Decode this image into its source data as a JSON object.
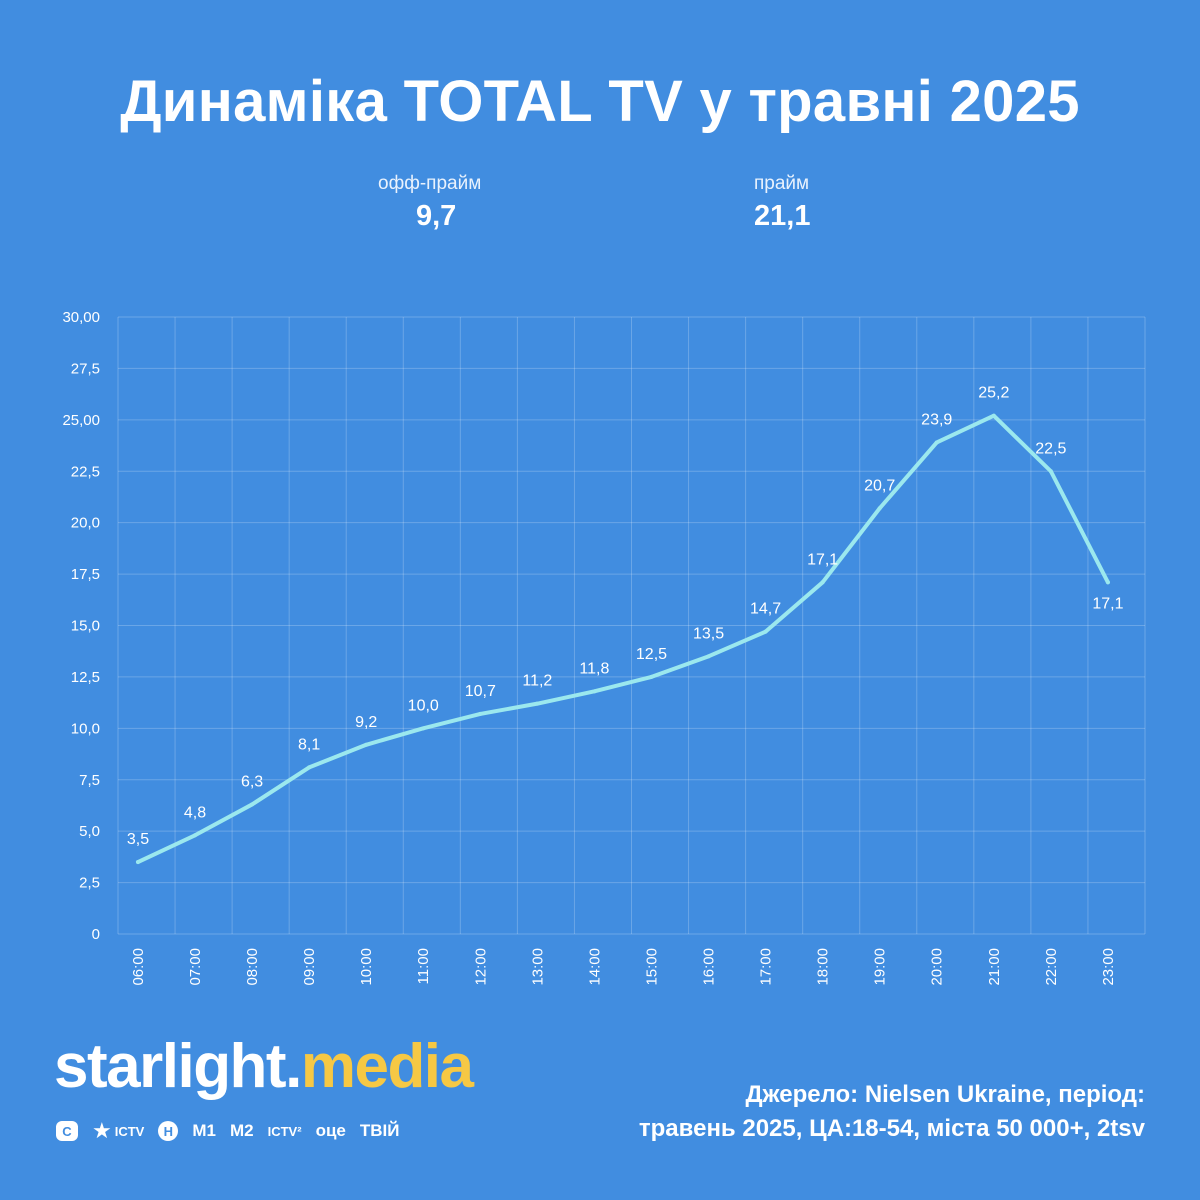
{
  "header": {
    "title": "Динаміка TOTAL TV у травні 2025"
  },
  "summary": [
    {
      "label": "офф-прайм",
      "value": "9,7"
    },
    {
      "label": "прайм",
      "value": "21,1"
    }
  ],
  "chart_data": {
    "type": "line",
    "title": "Динаміка TOTAL TV у травні 2025",
    "xlabel": "",
    "ylabel": "",
    "ylim": [
      0,
      30
    ],
    "yticks": [
      0,
      2.5,
      5,
      7.5,
      10,
      12.5,
      15,
      17.5,
      20,
      22.5,
      25,
      27.5,
      30
    ],
    "ytick_labels": [
      "0",
      "2,5",
      "5,0",
      "7,5",
      "10,0",
      "12,5",
      "15,0",
      "17,5",
      "20,0",
      "22,5",
      "25,00",
      "27,5",
      "30,00"
    ],
    "categories": [
      "06:00",
      "07:00",
      "08:00",
      "09:00",
      "10:00",
      "11:00",
      "12:00",
      "13:00",
      "14:00",
      "15:00",
      "16:00",
      "17:00",
      "18:00",
      "19:00",
      "20:00",
      "21:00",
      "22:00",
      "23:00"
    ],
    "values": [
      3.5,
      4.8,
      6.3,
      8.1,
      9.2,
      10.0,
      10.7,
      11.2,
      11.8,
      12.5,
      13.5,
      14.7,
      17.1,
      20.7,
      23.9,
      25.2,
      22.5,
      17.1
    ],
    "value_labels": [
      "3,5",
      "4,8",
      "6,3",
      "8,1",
      "9,2",
      "10,0",
      "10,7",
      "11,2",
      "11,8",
      "12,5",
      "13,5",
      "14,7",
      "17,1",
      "20,7",
      "23,9",
      "25,2",
      "22,5",
      "17,1"
    ],
    "grid": true,
    "line_color": "#9BE8EE",
    "background_color": "#418DE0"
  },
  "branding": {
    "logo_word": "starlight",
    "logo_dot": ".",
    "logo_accent": "media",
    "accent_color": "#F6C844",
    "channels": [
      {
        "icon": "stb-logo-icon",
        "label": "С"
      },
      {
        "icon": "ictv-logo-icon",
        "label": "ICTV"
      },
      {
        "icon": "novyi-kanal-logo-icon",
        "label": "Н"
      },
      {
        "icon": "m1-logo-icon",
        "label": "М1"
      },
      {
        "icon": "m2-logo-icon",
        "label": "М2"
      },
      {
        "icon": "ictv2-logo-icon",
        "label": "ICTV²"
      },
      {
        "icon": "oce-logo-icon",
        "label": "оце"
      },
      {
        "icon": "tviy-logo-icon",
        "label": "ТВІЙ"
      }
    ]
  },
  "source": {
    "line1": "Джерело: Nielsen Ukraine, період:",
    "line2": "травень 2025, ЦА:18-54, міста 50 000+, 2tsv"
  }
}
